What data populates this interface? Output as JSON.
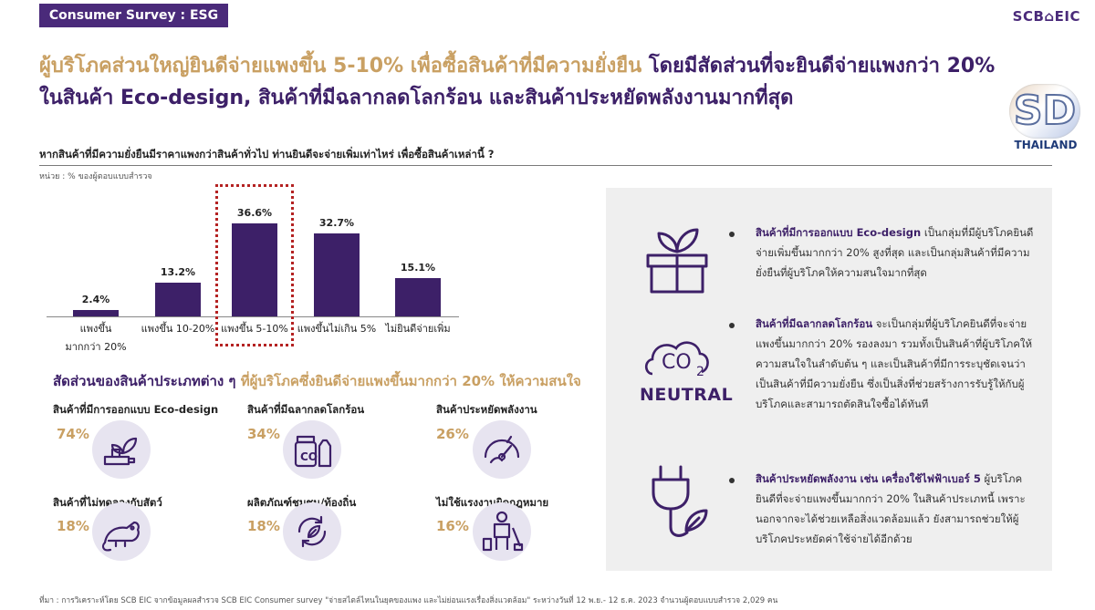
{
  "header": {
    "tag": "Consumer Survey : ESG",
    "brand": "SCB⌂EIC",
    "headline_line1_gold": "ผู้บริโภคส่วนใหญ่ยินดีจ่ายแพงขึ้น 5-10% เพื่อซื้อสินค้าที่มีความยั่งยืน",
    "headline_line1_purple": "โดยมีสัดส่วนที่จะยินดีจ่ายแพงกว่า 20%",
    "headline_line2": "ในสินค้า Eco-design, สินค้าที่มีฉลากลดโลกร้อน และสินค้าประหยัดพลังงานมากที่สุด",
    "logo_letters": "SD",
    "logo_text": "THAILAND"
  },
  "question": "หากสินค้าที่มีความยั่งยืนมีราคาแพงกว่าสินค้าทั่วไป ท่านยินดีจะจ่ายเพิ่มเท่าไหร่ เพื่อซื้อสินค้าเหล่านี้ ?",
  "unit": "หน่วย : % ของผู้ตอบแบบสำรวจ",
  "chart_data": {
    "type": "bar",
    "categories": [
      "แพงขึ้น มากกว่า 20%",
      "แพงขึ้น 10-20%",
      "แพงขึ้น 5-10%",
      "แพงขึ้นไม่เกิน 5%",
      "ไม่ยินดีจ่ายเพิ่ม"
    ],
    "category_lines": [
      [
        "แพงขึ้น",
        "มากกว่า 20%"
      ],
      [
        "แพงขึ้น 10-20%"
      ],
      [
        "แพงขึ้น 5-10%"
      ],
      [
        "แพงขึ้นไม่เกิน 5%"
      ],
      [
        "ไม่ยินดีจ่ายเพิ่ม"
      ]
    ],
    "values": [
      2.4,
      13.2,
      36.6,
      32.7,
      15.1
    ],
    "value_labels": [
      "2.4%",
      "13.2%",
      "36.6%",
      "32.7%",
      "15.1%"
    ],
    "highlighted_index": 2,
    "ylim": [
      0,
      40
    ],
    "bar_color": "#3d2068",
    "highlight_color": "#b42222"
  },
  "subhead": {
    "part1": "สัดส่วนของสินค้าประเภทต่าง ๆ",
    "part2": "ที่ผู้บริโภคซึ่งยินดีจ่ายแพงขึ้นมากกว่า 20% ให้ความสนใจ"
  },
  "categories": [
    {
      "label": "สินค้าที่มีการออกแบบ Eco-design",
      "pct": "74%",
      "icon": "plant-bottle-icon"
    },
    {
      "label": "สินค้าที่มีฉลากลดโลกร้อน",
      "pct": "34%",
      "icon": "eco-jar-icon"
    },
    {
      "label": "สินค้าประหยัดพลังงาน",
      "pct": "26%",
      "icon": "energy-gauge-icon"
    },
    {
      "label": "สินค้าที่ไม่ทดลองกับสัตว์",
      "pct": "18%",
      "icon": "rat-icon"
    },
    {
      "label": "ผลิตภัณฑ์ชุมชน/ท้องถิ่น",
      "pct": "18%",
      "icon": "recycle-leaf-icon"
    },
    {
      "label": "ไม่ใช้แรงงานผิดกฎหมาย",
      "pct": "16%",
      "icon": "worker-icon"
    }
  ],
  "panel": {
    "items": [
      {
        "bold": "สินค้าที่มีการออกแบบ Eco-design",
        "rest": " เป็นกลุ่มที่มีผู้บริโภคยินดีจ่ายเพิ่มขึ้นมากกว่า 20% สูงที่สุด และเป็นกลุ่มสินค้าที่มีความยั่งยืนที่ผู้บริโภคให้ความสนใจมากที่สุด",
        "icon": "gift-plant-icon"
      },
      {
        "bold": "สินค้าที่มีฉลากลดโลกร้อน",
        "rest": " จะเป็นกลุ่มที่ผู้บริโภคยินดีที่จะจ่ายแพงขึ้นมากกว่า 20% รองลงมา รวมทั้งเป็นสินค้าที่ผู้บริโภคให้ความสนใจในลำดับต้น ๆ และเป็นสินค้าที่มีการระบุชัดเจนว่าเป็นสินค้าที่มีความยั่งยืน ซึ่งเป็นสิ่งที่ช่วยสร้างการรับรู้ให้กับผู้บริโภคและสามารถตัดสินใจซื้อได้ทันที",
        "icon": "co2-neutral-icon",
        "icon_text": "NEUTRAL"
      },
      {
        "bold": "สินค้าประหยัดพลังงาน เช่น เครื่องใช้ไฟฟ้าเบอร์ 5",
        "rest": " ผู้บริโภคยินดีที่จะจ่ายแพงขึ้นมากกว่า 20% ในสินค้าประเภทนี้ เพราะนอกจากจะได้ช่วยเหลือสิ่งแวดล้อมแล้ว ยังสามารถช่วยให้ผู้บริโภคประหยัดค่าใช้จ่ายได้อีกด้วย",
        "icon": "plug-leaf-icon"
      }
    ]
  },
  "footer": "ที่มา : การวิเคราะห์โดย SCB EIC จากข้อมูลผลสำรวจ SCB EIC Consumer survey \"จ่ายสไตล์ไหนในยุคของแพง และไม่ย่อนแรงเรื่องสิ่งแวดล้อม\" ระหว่างวันที่ 12 พ.ย.- 12 ธ.ค. 2023 จำนวนผู้ตอบแบบสำรวจ 2,029 คน"
}
